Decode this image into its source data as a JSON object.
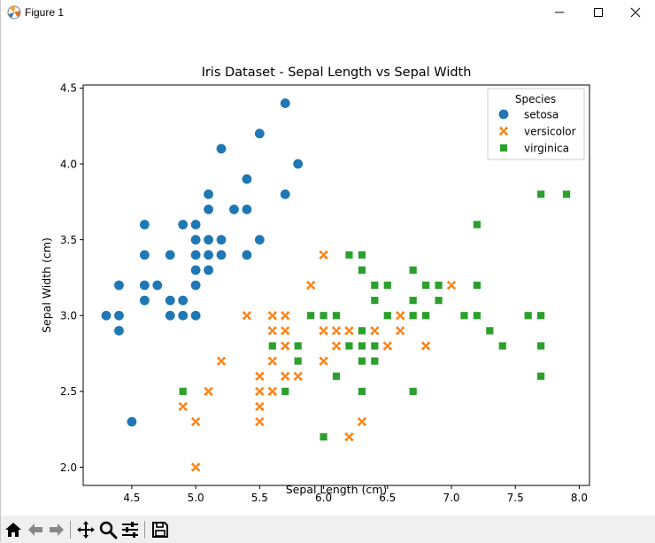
{
  "window": {
    "title": "Figure 1",
    "controls": [
      "minimize",
      "maximize",
      "close"
    ]
  },
  "toolbar": {
    "items": [
      {
        "name": "home-icon",
        "label": "Home"
      },
      {
        "name": "back-icon",
        "label": "Back"
      },
      {
        "name": "forward-icon",
        "label": "Forward"
      },
      {
        "name": "pan-icon",
        "label": "Pan"
      },
      {
        "name": "zoom-icon",
        "label": "Zoom"
      },
      {
        "name": "configure-subplots-icon",
        "label": "Configure subplots"
      },
      {
        "name": "save-icon",
        "label": "Save"
      }
    ]
  },
  "colors": {
    "setosa": "#1f77b4",
    "versicolor": "#ff7f0e",
    "virginica": "#2ca02c"
  },
  "chart_data": {
    "type": "scatter",
    "title": "Iris Dataset - Sepal Length vs Sepal Width",
    "xlabel": "Sepal Length (cm)",
    "ylabel": "Sepal Width (cm)",
    "xlim": [
      4.12,
      8.08
    ],
    "ylim": [
      1.88,
      4.52
    ],
    "xticks": [
      4.5,
      5.0,
      5.5,
      6.0,
      6.5,
      7.0,
      7.5,
      8.0
    ],
    "xtick_labels": [
      "4.5",
      "5.0",
      "5.5",
      "6.0",
      "6.5",
      "7.0",
      "7.5",
      "8.0"
    ],
    "yticks": [
      2.0,
      2.5,
      3.0,
      3.5,
      4.0,
      4.5
    ],
    "ytick_labels": [
      "2.0",
      "2.5",
      "3.0",
      "3.5",
      "4.0",
      "4.5"
    ],
    "grid": false,
    "legend": {
      "title": "Species",
      "placement": "top-right"
    },
    "series": [
      {
        "name": "setosa",
        "marker": "circle",
        "points": [
          [
            5.1,
            3.5
          ],
          [
            4.9,
            3.0
          ],
          [
            4.7,
            3.2
          ],
          [
            4.6,
            3.1
          ],
          [
            5.0,
            3.6
          ],
          [
            5.4,
            3.9
          ],
          [
            4.6,
            3.4
          ],
          [
            5.0,
            3.4
          ],
          [
            4.4,
            2.9
          ],
          [
            4.9,
            3.1
          ],
          [
            5.4,
            3.7
          ],
          [
            4.8,
            3.4
          ],
          [
            4.8,
            3.0
          ],
          [
            4.3,
            3.0
          ],
          [
            5.8,
            4.0
          ],
          [
            5.7,
            4.4
          ],
          [
            5.4,
            3.9
          ],
          [
            5.1,
            3.5
          ],
          [
            5.7,
            3.8
          ],
          [
            5.1,
            3.8
          ],
          [
            5.4,
            3.4
          ],
          [
            5.1,
            3.7
          ],
          [
            4.6,
            3.6
          ],
          [
            5.1,
            3.3
          ],
          [
            4.8,
            3.4
          ],
          [
            5.0,
            3.0
          ],
          [
            5.0,
            3.4
          ],
          [
            5.2,
            3.5
          ],
          [
            5.2,
            3.4
          ],
          [
            4.7,
            3.2
          ],
          [
            4.8,
            3.1
          ],
          [
            5.4,
            3.4
          ],
          [
            5.2,
            4.1
          ],
          [
            5.5,
            4.2
          ],
          [
            4.9,
            3.1
          ],
          [
            5.0,
            3.2
          ],
          [
            5.5,
            3.5
          ],
          [
            4.9,
            3.6
          ],
          [
            4.4,
            3.0
          ],
          [
            5.1,
            3.4
          ],
          [
            5.0,
            3.5
          ],
          [
            4.5,
            2.3
          ],
          [
            4.4,
            3.2
          ],
          [
            5.0,
            3.5
          ],
          [
            5.1,
            3.8
          ],
          [
            4.8,
            3.0
          ],
          [
            5.1,
            3.8
          ],
          [
            4.6,
            3.2
          ],
          [
            5.3,
            3.7
          ],
          [
            5.0,
            3.3
          ]
        ]
      },
      {
        "name": "versicolor",
        "marker": "x",
        "points": [
          [
            7.0,
            3.2
          ],
          [
            6.4,
            3.2
          ],
          [
            6.9,
            3.1
          ],
          [
            5.5,
            2.3
          ],
          [
            6.5,
            2.8
          ],
          [
            5.7,
            2.8
          ],
          [
            6.3,
            3.3
          ],
          [
            4.9,
            2.4
          ],
          [
            6.6,
            2.9
          ],
          [
            5.2,
            2.7
          ],
          [
            5.0,
            2.0
          ],
          [
            5.9,
            3.0
          ],
          [
            6.0,
            2.2
          ],
          [
            6.1,
            2.9
          ],
          [
            5.6,
            2.9
          ],
          [
            6.7,
            3.1
          ],
          [
            5.6,
            3.0
          ],
          [
            5.8,
            2.7
          ],
          [
            6.2,
            2.2
          ],
          [
            5.6,
            2.5
          ],
          [
            5.9,
            3.2
          ],
          [
            6.1,
            2.8
          ],
          [
            6.3,
            2.5
          ],
          [
            6.1,
            2.8
          ],
          [
            6.4,
            2.9
          ],
          [
            6.6,
            3.0
          ],
          [
            6.8,
            2.8
          ],
          [
            6.7,
            3.0
          ],
          [
            6.0,
            2.9
          ],
          [
            5.7,
            2.6
          ],
          [
            5.5,
            2.4
          ],
          [
            5.5,
            2.4
          ],
          [
            5.8,
            2.7
          ],
          [
            6.0,
            2.7
          ],
          [
            5.4,
            3.0
          ],
          [
            6.0,
            3.4
          ],
          [
            6.7,
            3.1
          ],
          [
            6.3,
            2.3
          ],
          [
            5.6,
            3.0
          ],
          [
            5.5,
            2.5
          ],
          [
            5.5,
            2.6
          ],
          [
            6.1,
            3.0
          ],
          [
            5.8,
            2.6
          ],
          [
            5.0,
            2.3
          ],
          [
            5.6,
            2.7
          ],
          [
            5.7,
            3.0
          ],
          [
            5.7,
            2.9
          ],
          [
            6.2,
            2.9
          ],
          [
            5.1,
            2.5
          ],
          [
            5.7,
            2.8
          ]
        ]
      },
      {
        "name": "virginica",
        "marker": "square",
        "points": [
          [
            6.3,
            3.3
          ],
          [
            5.8,
            2.7
          ],
          [
            7.1,
            3.0
          ],
          [
            6.3,
            2.9
          ],
          [
            6.5,
            3.0
          ],
          [
            7.6,
            3.0
          ],
          [
            4.9,
            2.5
          ],
          [
            7.3,
            2.9
          ],
          [
            6.7,
            2.5
          ],
          [
            7.2,
            3.6
          ],
          [
            6.5,
            3.2
          ],
          [
            6.4,
            2.7
          ],
          [
            6.8,
            3.0
          ],
          [
            5.7,
            2.5
          ],
          [
            5.8,
            2.8
          ],
          [
            6.4,
            3.2
          ],
          [
            6.5,
            3.0
          ],
          [
            7.7,
            3.8
          ],
          [
            7.7,
            2.6
          ],
          [
            6.0,
            2.2
          ],
          [
            6.9,
            3.2
          ],
          [
            5.6,
            2.8
          ],
          [
            7.7,
            2.8
          ],
          [
            6.3,
            2.7
          ],
          [
            6.7,
            3.3
          ],
          [
            7.2,
            3.2
          ],
          [
            6.2,
            2.8
          ],
          [
            6.1,
            3.0
          ],
          [
            6.4,
            2.8
          ],
          [
            7.2,
            3.0
          ],
          [
            7.4,
            2.8
          ],
          [
            7.9,
            3.8
          ],
          [
            6.4,
            2.8
          ],
          [
            6.3,
            2.8
          ],
          [
            6.1,
            2.6
          ],
          [
            7.7,
            3.0
          ],
          [
            6.3,
            3.4
          ],
          [
            6.4,
            3.1
          ],
          [
            6.0,
            3.0
          ],
          [
            6.9,
            3.1
          ],
          [
            6.7,
            3.1
          ],
          [
            6.9,
            3.1
          ],
          [
            5.8,
            2.7
          ],
          [
            6.8,
            3.2
          ],
          [
            6.7,
            3.3
          ],
          [
            6.7,
            3.0
          ],
          [
            6.3,
            2.5
          ],
          [
            6.5,
            3.0
          ],
          [
            6.2,
            3.4
          ],
          [
            5.9,
            3.0
          ]
        ]
      }
    ]
  }
}
